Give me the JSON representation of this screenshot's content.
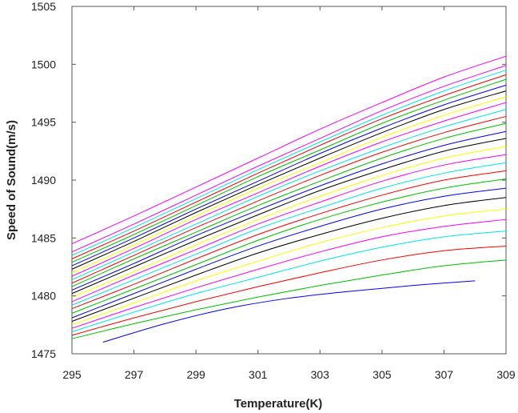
{
  "chart_data": {
    "type": "line",
    "title": "",
    "xlabel": "Temperature(K)",
    "ylabel": "Speed of Sound(m/s)",
    "xlim": [
      295,
      309
    ],
    "ylim": [
      1475,
      1505
    ],
    "xticks": [
      295,
      297,
      299,
      301,
      303,
      305,
      307,
      309
    ],
    "yticks": [
      1475,
      1480,
      1485,
      1490,
      1495,
      1500,
      1505
    ],
    "grid": false,
    "legend": "none",
    "series": [
      {
        "color": "#0000ff",
        "x": [
          296,
          298,
          300,
          302,
          304,
          306,
          308
        ],
        "y": [
          1476.0,
          1477.6,
          1478.9,
          1479.8,
          1480.4,
          1480.9,
          1481.3
        ]
      },
      {
        "color": "#00c000",
        "x": [
          295,
          297,
          299,
          301,
          303,
          305,
          307,
          309
        ],
        "y": [
          1476.3,
          1477.6,
          1478.8,
          1479.9,
          1480.9,
          1481.8,
          1482.6,
          1483.1
        ]
      },
      {
        "color": "#ff0000",
        "x": [
          295,
          297,
          299,
          301,
          303,
          305,
          307,
          309
        ],
        "y": [
          1476.6,
          1478.1,
          1479.5,
          1480.8,
          1482.0,
          1483.1,
          1483.9,
          1484.3
        ]
      },
      {
        "color": "#00e5e5",
        "x": [
          295,
          297,
          299,
          301,
          303,
          305,
          307,
          309
        ],
        "y": [
          1476.9,
          1478.6,
          1480.2,
          1481.6,
          1483.0,
          1484.2,
          1485.1,
          1485.6
        ]
      },
      {
        "color": "#ff00ff",
        "x": [
          295,
          297,
          299,
          301,
          303,
          305,
          307,
          309
        ],
        "y": [
          1477.2,
          1479.0,
          1480.7,
          1482.3,
          1483.8,
          1485.1,
          1486.0,
          1486.6
        ]
      },
      {
        "color": "#ffff00",
        "x": [
          295,
          297,
          299,
          301,
          303,
          305,
          307,
          309
        ],
        "y": [
          1477.5,
          1479.4,
          1481.3,
          1483.0,
          1484.6,
          1485.9,
          1486.9,
          1487.5
        ]
      },
      {
        "color": "#000000",
        "x": [
          295,
          297,
          299,
          301,
          303,
          305,
          307,
          309
        ],
        "y": [
          1477.8,
          1479.8,
          1481.8,
          1483.7,
          1485.3,
          1486.7,
          1487.8,
          1488.5
        ]
      },
      {
        "color": "#0000ff",
        "x": [
          295,
          297,
          299,
          301,
          303,
          305,
          307,
          309
        ],
        "y": [
          1478.1,
          1480.2,
          1482.3,
          1484.3,
          1486.0,
          1487.5,
          1488.6,
          1489.3
        ]
      },
      {
        "color": "#00c000",
        "x": [
          295,
          297,
          299,
          301,
          303,
          305,
          307,
          309
        ],
        "y": [
          1478.5,
          1480.6,
          1482.7,
          1484.8,
          1486.6,
          1488.1,
          1489.3,
          1490.1
        ]
      },
      {
        "color": "#ff0000",
        "x": [
          295,
          297,
          299,
          301,
          303,
          305,
          307,
          309
        ],
        "y": [
          1478.9,
          1481.0,
          1483.2,
          1485.3,
          1487.1,
          1488.7,
          1490.0,
          1490.8
        ]
      },
      {
        "color": "#00e5e5",
        "x": [
          295,
          297,
          299,
          301,
          303,
          305,
          307,
          309
        ],
        "y": [
          1479.2,
          1481.4,
          1483.6,
          1485.8,
          1487.6,
          1489.3,
          1490.6,
          1491.5
        ]
      },
      {
        "color": "#ff00ff",
        "x": [
          295,
          297,
          299,
          301,
          303,
          305,
          307,
          309
        ],
        "y": [
          1479.5,
          1481.8,
          1484.0,
          1486.2,
          1488.1,
          1489.9,
          1491.3,
          1492.2
        ]
      },
      {
        "color": "#ffff00",
        "x": [
          295,
          297,
          299,
          301,
          303,
          305,
          307,
          309
        ],
        "y": [
          1479.9,
          1482.1,
          1484.4,
          1486.6,
          1488.6,
          1490.4,
          1491.9,
          1492.9
        ]
      },
      {
        "color": "#000000",
        "x": [
          295,
          297,
          299,
          301,
          303,
          305,
          307,
          309
        ],
        "y": [
          1480.2,
          1482.5,
          1484.8,
          1487.0,
          1489.1,
          1490.9,
          1492.5,
          1493.6
        ]
      },
      {
        "color": "#0000ff",
        "x": [
          295,
          297,
          299,
          301,
          303,
          305,
          307,
          309
        ],
        "y": [
          1480.5,
          1482.8,
          1485.2,
          1487.4,
          1489.5,
          1491.4,
          1493.0,
          1494.2
        ]
      },
      {
        "color": "#00c000",
        "x": [
          295,
          297,
          299,
          301,
          303,
          305,
          307,
          309
        ],
        "y": [
          1480.8,
          1483.2,
          1485.5,
          1487.8,
          1489.9,
          1491.9,
          1493.6,
          1494.9
        ]
      },
      {
        "color": "#ff0000",
        "x": [
          295,
          297,
          299,
          301,
          303,
          305,
          307,
          309
        ],
        "y": [
          1481.1,
          1483.5,
          1485.9,
          1488.2,
          1490.4,
          1492.4,
          1494.1,
          1495.5
        ]
      },
      {
        "color": "#00e5e5",
        "x": [
          295,
          297,
          299,
          301,
          303,
          305,
          307,
          309
        ],
        "y": [
          1481.4,
          1483.8,
          1486.2,
          1488.6,
          1490.8,
          1492.8,
          1494.6,
          1496.1
        ]
      },
      {
        "color": "#ff00ff",
        "x": [
          295,
          297,
          299,
          301,
          303,
          305,
          307,
          309
        ],
        "y": [
          1481.7,
          1484.1,
          1486.6,
          1488.9,
          1491.2,
          1493.3,
          1495.1,
          1496.7
        ]
      },
      {
        "color": "#ffff00",
        "x": [
          295,
          297,
          299,
          301,
          303,
          305,
          307,
          309
        ],
        "y": [
          1482.0,
          1484.4,
          1486.9,
          1489.3,
          1491.5,
          1493.7,
          1495.6,
          1497.2
        ]
      },
      {
        "color": "#000000",
        "x": [
          295,
          297,
          299,
          301,
          303,
          305,
          307,
          309
        ],
        "y": [
          1482.3,
          1484.7,
          1487.2,
          1489.6,
          1491.9,
          1494.1,
          1496.1,
          1497.7
        ]
      },
      {
        "color": "#0000ff",
        "x": [
          295,
          297,
          299,
          301,
          303,
          305,
          307,
          309
        ],
        "y": [
          1482.6,
          1485.0,
          1487.5,
          1489.9,
          1492.3,
          1494.5,
          1496.5,
          1498.2
        ]
      },
      {
        "color": "#00c000",
        "x": [
          295,
          297,
          299,
          301,
          303,
          305,
          307,
          309
        ],
        "y": [
          1482.9,
          1485.3,
          1487.8,
          1490.3,
          1492.6,
          1494.9,
          1496.9,
          1498.7
        ]
      },
      {
        "color": "#ff0000",
        "x": [
          295,
          297,
          299,
          301,
          303,
          305,
          307,
          309
        ],
        "y": [
          1483.2,
          1485.6,
          1488.1,
          1490.6,
          1493.0,
          1495.3,
          1497.3,
          1499.1
        ]
      },
      {
        "color": "#00e5e5",
        "x": [
          295,
          297,
          299,
          301,
          303,
          305,
          307,
          309
        ],
        "y": [
          1483.5,
          1485.9,
          1488.4,
          1490.9,
          1493.3,
          1495.6,
          1497.7,
          1499.5
        ]
      },
      {
        "color": "#ff00ff",
        "x": [
          295,
          297,
          299,
          301,
          303,
          305,
          307,
          309
        ],
        "y": [
          1483.8,
          1486.2,
          1488.7,
          1491.2,
          1493.6,
          1496.0,
          1498.1,
          1499.9
        ]
      },
      {
        "color": "#ff00ff",
        "x": [
          295,
          297,
          299,
          301,
          303,
          305,
          307,
          309
        ],
        "y": [
          1484.5,
          1486.9,
          1489.4,
          1491.9,
          1494.4,
          1496.7,
          1498.9,
          1500.7
        ]
      }
    ]
  }
}
